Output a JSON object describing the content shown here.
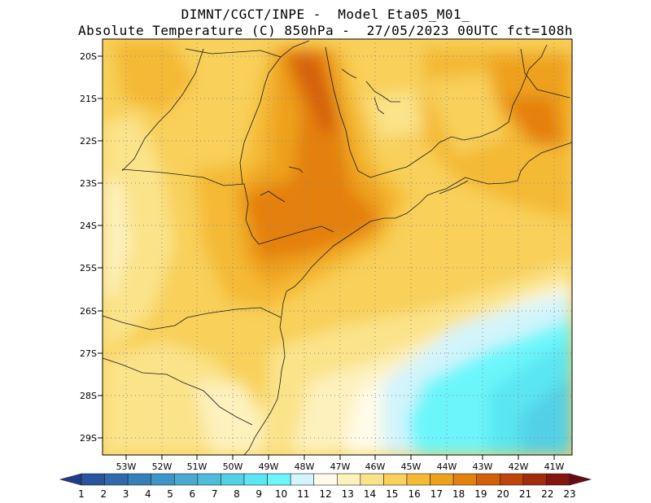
{
  "header": {
    "line1": "DIMNT/CGCT/INPE -  Model Eta05_M01_",
    "line2": "Absolute Temperature (C) 850hPa -  27/05/2023 00UTC fct=108h"
  },
  "map": {
    "lat_labels": [
      "20S",
      "21S",
      "22S",
      "23S",
      "24S",
      "25S",
      "26S",
      "27S",
      "28S",
      "29S"
    ],
    "lon_labels": [
      "53W",
      "52W",
      "51W",
      "50W",
      "49W",
      "48W",
      "47W",
      "46W",
      "45W",
      "44W",
      "43W",
      "42W",
      "41W"
    ],
    "lat_range": [
      -29.4,
      -19.7
    ],
    "lon_range": [
      -53.7,
      -40.5
    ]
  },
  "colorbar": {
    "labels": [
      "1",
      "2",
      "3",
      "4",
      "5",
      "6",
      "7",
      "8",
      "9",
      "10",
      "11",
      "12",
      "13",
      "14",
      "15",
      "16",
      "17",
      "18",
      "19",
      "20",
      "21",
      "22",
      "23"
    ],
    "colors": [
      "#1f3c8c",
      "#2a549e",
      "#2f6aad",
      "#3580b8",
      "#3f95c6",
      "#4aa9d2",
      "#4fbcdc",
      "#52d0e6",
      "#5ae6f2",
      "#6cf6fb",
      "#d2f4fb",
      "#fffbe8",
      "#fdf1bd",
      "#fbe38a",
      "#f8d05a",
      "#f4b935",
      "#eea11d",
      "#e4800e",
      "#d45f09",
      "#bf430a",
      "#a12c0c",
      "#84160f",
      "#6a0a12"
    ]
  }
}
